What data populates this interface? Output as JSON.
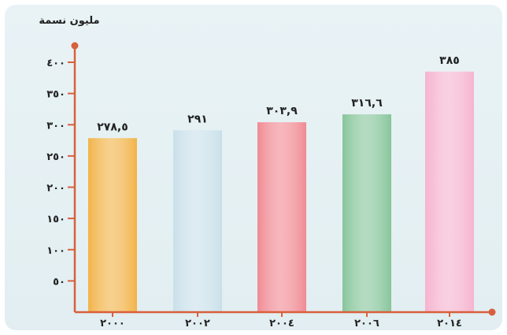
{
  "chart_data": {
    "type": "bar",
    "title": "",
    "ylabel": "مليون نسمة",
    "xlabel": "",
    "categories": [
      "٢٠٠٠",
      "٢٠٠٢",
      "٢٠٠٤",
      "٢٠٠٦",
      "٢٠١٤"
    ],
    "values": [
      278.5,
      291,
      303.9,
      316.6,
      385
    ],
    "value_labels": [
      "٢٧٨,٥",
      "٢٩١",
      "٣٠٣,٩",
      "٣١٦,٦",
      "٣٨٥"
    ],
    "ylim": [
      0,
      400
    ],
    "yticks": [
      50,
      100,
      150,
      200,
      250,
      300,
      350,
      400
    ],
    "ytick_labels": [
      "٥٠",
      "١٠٠",
      "١٥٠",
      "٢٠٠",
      "٢٥٠",
      "٣٠٠",
      "٣٥٠",
      "٤٠٠"
    ],
    "bar_colors": [
      "#f2b347",
      "#c9e0ea",
      "#f08a93",
      "#86c59a",
      "#f5b3cf"
    ],
    "axis_color": "#d8603c",
    "grid": false,
    "legend": "none"
  }
}
